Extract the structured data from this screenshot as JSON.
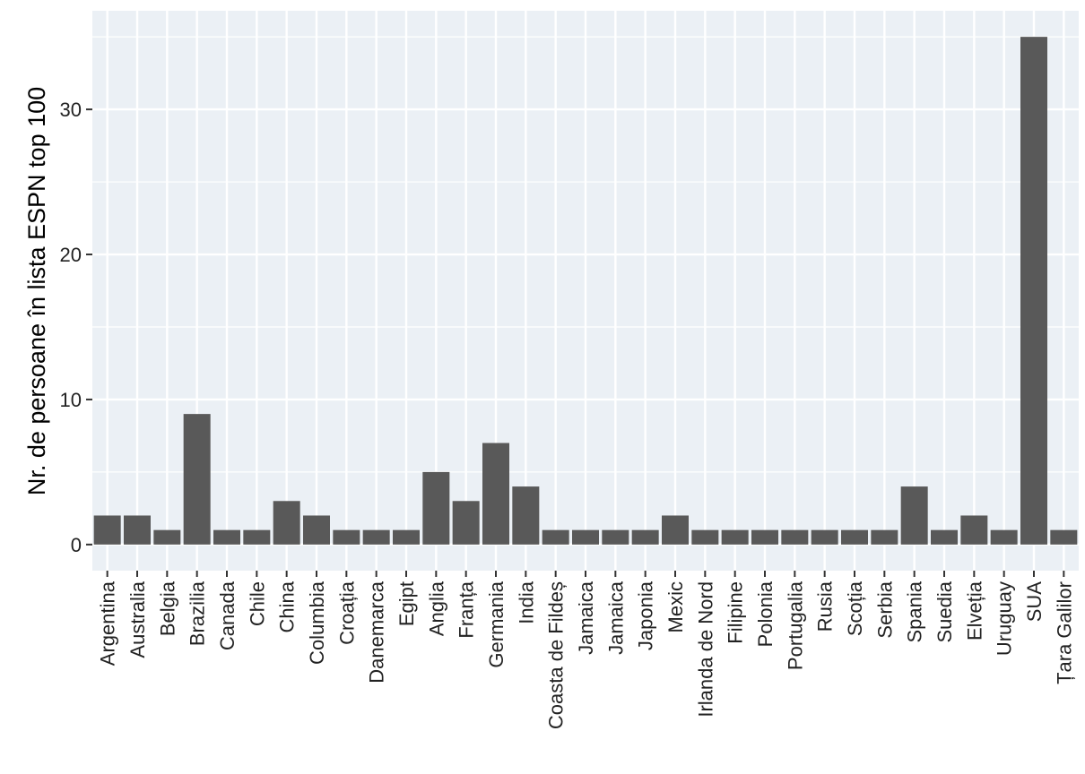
{
  "chart_data": {
    "type": "bar",
    "title": "",
    "xlabel": "",
    "ylabel": "Nr. de persoane în lista ESPN top 100",
    "ylim": [
      -1.8,
      36.8
    ],
    "yticks": [
      0,
      10,
      20,
      30
    ],
    "grid": true,
    "colors": {
      "bar": "#595959",
      "panel": "#EBF0F5",
      "grid": "#FFFFFF"
    },
    "categories": [
      "Argentina",
      "Australia",
      "Belgia",
      "Brazilia",
      "Canada",
      "Chile",
      "China",
      "Columbia",
      "Croația",
      "Danemarca",
      "Egipt",
      "Anglia",
      "Franța",
      "Germania",
      "India",
      "Coasta de Fildeș",
      "Jamaica",
      "Jamaica",
      "Japonia",
      "Mexic",
      "Irlanda de Nord",
      "Filipine",
      "Polonia",
      "Portugalia",
      "Rusia",
      "Scoția",
      "Serbia",
      "Spania",
      "Suedia",
      "Elveția",
      "Uruguay",
      "SUA",
      "Țara Galilor"
    ],
    "values": [
      2,
      2,
      1,
      9,
      1,
      1,
      3,
      2,
      1,
      1,
      1,
      5,
      3,
      7,
      4,
      1,
      1,
      1,
      1,
      2,
      1,
      1,
      1,
      1,
      1,
      1,
      1,
      4,
      1,
      2,
      1,
      35,
      1
    ]
  }
}
